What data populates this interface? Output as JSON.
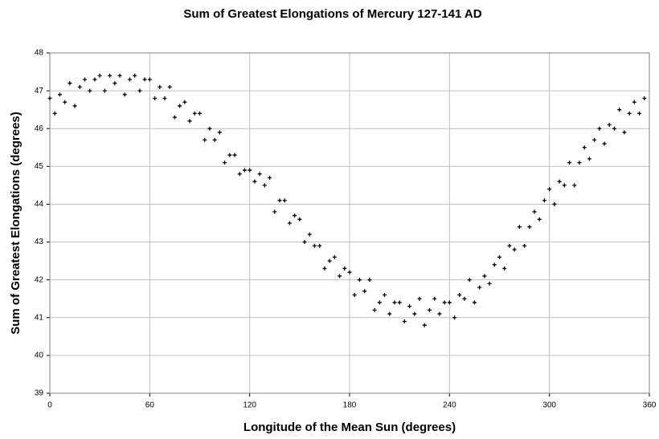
{
  "chart_data": {
    "type": "scatter",
    "title": "Sum of Greatest Elongations of Mercury 127-141 AD",
    "x_label": "Longitude of the Mean Sun (degrees)",
    "y_label": "Sum of Greatest Elongations (degrees)",
    "color": "#000000",
    "grid": true,
    "xlim": [
      0,
      360
    ],
    "xticks": [
      0,
      60,
      120,
      180,
      240,
      300,
      360
    ],
    "ylim": [
      39,
      48
    ],
    "yticks": [
      39,
      40,
      41,
      42,
      43,
      44,
      45,
      46,
      47,
      48
    ],
    "x": [
      0,
      3,
      6,
      9,
      12,
      15,
      18,
      21,
      24,
      27,
      30,
      33,
      36,
      39,
      42,
      45,
      48,
      51,
      54,
      57,
      60,
      63,
      66,
      69,
      72,
      75,
      78,
      81,
      84,
      87,
      90,
      93,
      96,
      99,
      102,
      105,
      108,
      111,
      114,
      117,
      120,
      123,
      126,
      129,
      132,
      135,
      138,
      141,
      144,
      147,
      150,
      153,
      156,
      159,
      162,
      165,
      168,
      171,
      174,
      177,
      180,
      183,
      186,
      189,
      192,
      195,
      198,
      201,
      204,
      207,
      210,
      213,
      216,
      219,
      222,
      225,
      228,
      231,
      234,
      237,
      240,
      243,
      246,
      249,
      252,
      255,
      258,
      261,
      264,
      267,
      270,
      273,
      276,
      279,
      282,
      285,
      288,
      291,
      294,
      297,
      300,
      303,
      306,
      309,
      312,
      315,
      318,
      321,
      324,
      327,
      330,
      333,
      336,
      339,
      342,
      345,
      348,
      351,
      354,
      357
    ],
    "values": [
      46.8,
      46.4,
      46.9,
      46.7,
      47.2,
      46.6,
      47.1,
      47.3,
      47.0,
      47.3,
      47.4,
      47.0,
      47.4,
      47.2,
      47.4,
      46.9,
      47.3,
      47.4,
      47.0,
      47.3,
      47.3,
      46.8,
      47.1,
      46.8,
      47.1,
      46.3,
      46.6,
      46.7,
      46.2,
      46.4,
      46.4,
      45.7,
      46.0,
      45.7,
      45.9,
      45.1,
      45.3,
      45.3,
      44.8,
      44.9,
      44.9,
      44.6,
      44.8,
      44.5,
      44.7,
      43.8,
      44.1,
      44.1,
      43.5,
      43.7,
      43.6,
      43.0,
      43.2,
      42.9,
      42.9,
      42.3,
      42.5,
      42.6,
      42.1,
      42.3,
      42.2,
      41.6,
      42.0,
      41.7,
      42.0,
      41.2,
      41.4,
      41.6,
      41.1,
      41.4,
      41.4,
      40.9,
      41.3,
      41.1,
      41.5,
      40.8,
      41.2,
      41.5,
      41.1,
      41.4,
      41.4,
      41.0,
      41.6,
      41.5,
      42.0,
      41.4,
      41.8,
      42.1,
      41.9,
      42.4,
      42.6,
      42.3,
      42.9,
      42.8,
      43.4,
      42.9,
      43.4,
      43.8,
      43.6,
      44.1,
      44.4,
      44.0,
      44.6,
      44.5,
      45.1,
      44.5,
      45.1,
      45.5,
      45.2,
      45.7,
      46.0,
      45.6,
      46.1,
      46.0,
      46.5,
      45.9,
      46.4,
      46.7,
      46.4,
      46.8
    ]
  }
}
